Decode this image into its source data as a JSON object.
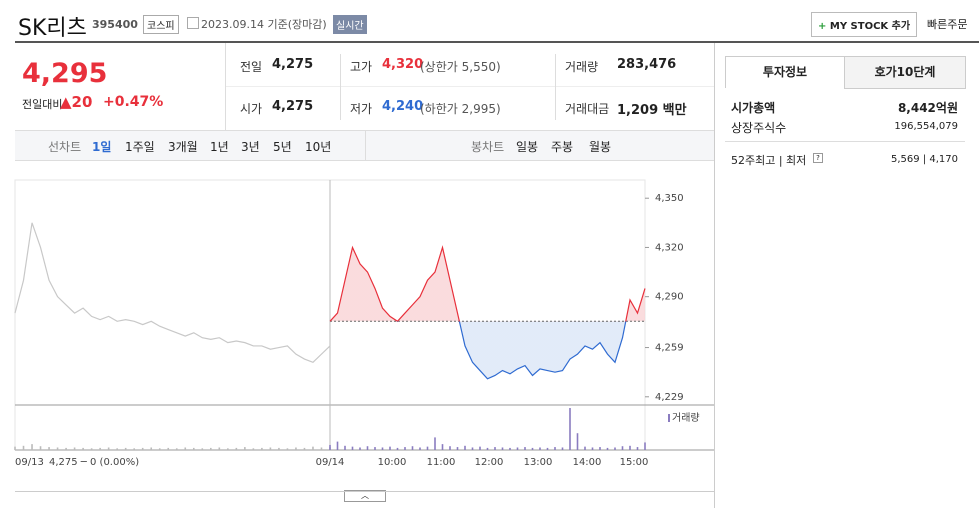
{
  "header": {
    "name": "SK리츠",
    "code": "395400",
    "market": "코스피",
    "date": "2023.09.14 기준(장마감)",
    "realtime": "실시간",
    "mystock": "MY STOCK 추가",
    "quick_order": "빠른주문"
  },
  "price": {
    "current": "4,295",
    "change_label": "전일대비",
    "change": "20",
    "rate": "+0.47%"
  },
  "quote": {
    "rows": [
      [
        {
          "label": "전일",
          "value": "4,275"
        },
        {
          "label": "고가",
          "value": "4,320",
          "note": "(상한가 5,550)"
        },
        {
          "label": "거래량",
          "value": "283,476"
        }
      ],
      [
        {
          "label": "시가",
          "value": "4,275"
        },
        {
          "label": "저가",
          "value": "4,240",
          "note": "(하한가 2,995)"
        },
        {
          "label": "거래대금",
          "value": "1,209 백만"
        }
      ]
    ]
  },
  "tabs": {
    "line_label": "선차트",
    "line": [
      "1일",
      "1주일",
      "3개월",
      "1년",
      "3년",
      "5년",
      "10년"
    ],
    "candle_label": "봉차트",
    "candle": [
      "일봉",
      "주봉",
      "월봉"
    ]
  },
  "chart_data": {
    "type": "line",
    "ylim": [
      4224,
      4355
    ],
    "yticks": [
      {
        "value": 4350,
        "label": "4,350"
      },
      {
        "value": 4320,
        "label": "4,320"
      },
      {
        "value": 4290,
        "label": "4,290"
      },
      {
        "value": 4259,
        "label": "4,259"
      },
      {
        "value": 4229,
        "label": "4,229"
      }
    ],
    "base": 4275,
    "series": [
      {
        "color": "#c8c8c8",
        "values": [
          4280,
          4300,
          4335,
          4320,
          4300,
          4290,
          4285,
          4280,
          4283,
          4278,
          4276,
          4278,
          4275,
          4276,
          4275,
          4273,
          4275,
          4272,
          4270,
          4268,
          4266,
          4268,
          4265,
          4264,
          4265,
          4262,
          4263,
          4262,
          4260,
          4260,
          4258,
          4259,
          4260,
          4255,
          4252,
          4250,
          4255,
          4260
        ],
        "volume": [
          8,
          10,
          14,
          9,
          7,
          6,
          5,
          6,
          5,
          4,
          5,
          6,
          4,
          5,
          4,
          5,
          6,
          4,
          5,
          4,
          6,
          5,
          4,
          5,
          6,
          4,
          5,
          7,
          4,
          5,
          6,
          5,
          4,
          6,
          5,
          8,
          6,
          7
        ]
      },
      {
        "color_up": "#e8303b",
        "color_down": "#2f6bd1",
        "values": [
          4275,
          4280,
          4300,
          4320,
          4310,
          4305,
          4295,
          4283,
          4278,
          4275,
          4280,
          4285,
          4290,
          4300,
          4305,
          4320,
          4300,
          4280,
          4260,
          4250,
          4245,
          4240,
          4242,
          4245,
          4243,
          4246,
          4248,
          4242,
          4246,
          4245,
          4244,
          4245,
          4252,
          4255,
          4260,
          4258,
          4262,
          4255,
          4250,
          4265,
          4288,
          4280,
          4295
        ],
        "volume": [
          12,
          20,
          10,
          8,
          6,
          9,
          7,
          6,
          8,
          5,
          7,
          9,
          6,
          8,
          30,
          14,
          9,
          7,
          10,
          6,
          8,
          5,
          7,
          6,
          5,
          6,
          7,
          5,
          6,
          5,
          7,
          6,
          100,
          40,
          8,
          6,
          7,
          5,
          6,
          9,
          10,
          7,
          18
        ]
      }
    ],
    "volume_label": "거래량",
    "x_labels": [
      "09/13",
      "09/14",
      "10:00",
      "11:00",
      "12:00",
      "13:00",
      "14:00",
      "15:00"
    ],
    "prev_summary": "4,275 ─ 0 (0.00%)"
  },
  "info": {
    "tabs": [
      "투자정보",
      "호가10단계"
    ],
    "rows": [
      {
        "label": "시가총액",
        "value": "8,442억원"
      },
      {
        "label": "상장주식수",
        "value": "196,554,079"
      },
      {
        "label": "52주최고 | 최저",
        "value": "5,569 | 4,170"
      }
    ]
  }
}
